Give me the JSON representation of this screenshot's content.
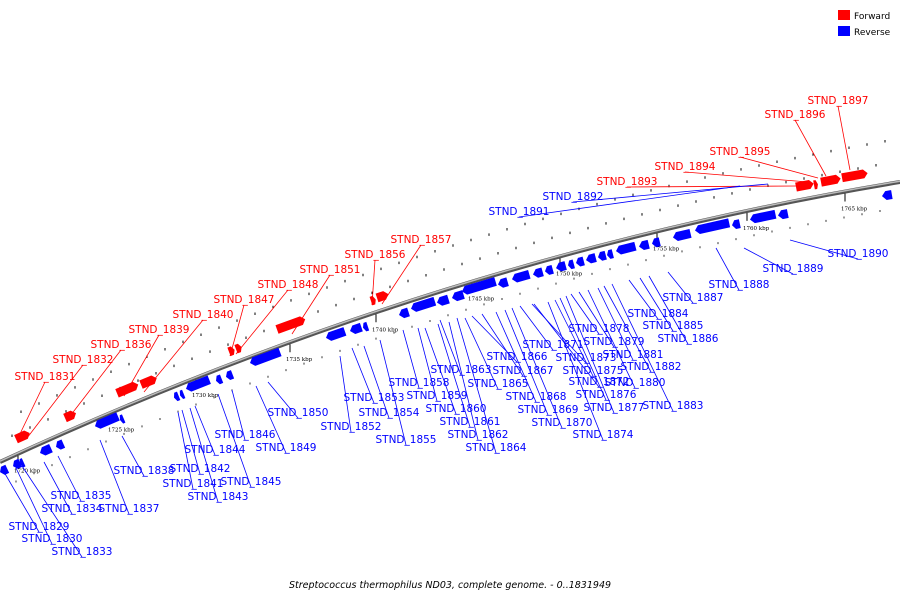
{
  "colors": {
    "forward": "#ff0000",
    "reverse": "#0000ff",
    "backbone": "#808080"
  },
  "legend": {
    "forward_label": "Forward",
    "reverse_label": "Reverse"
  },
  "caption": "Streptococcus thermophilus ND03, complete genome. - 0..1831949",
  "scale_labels": [
    "1720 kbp",
    "1725 kbp",
    "1730 kbp",
    "1735 kbp",
    "1740 kbp",
    "1745 kbp",
    "1750 kbp",
    "1755 kbp",
    "1760 kbp",
    "1765 kbp"
  ],
  "forward_genes": [
    "STND_1831",
    "STND_1832",
    "STND_1836",
    "STND_1839",
    "STND_1840",
    "STND_1847",
    "STND_1848",
    "STND_1851",
    "STND_1856",
    "STND_1857",
    "STND_1893",
    "STND_1894",
    "STND_1895",
    "STND_1896",
    "STND_1897"
  ],
  "reverse_genes": [
    "STND_1829",
    "STND_1830",
    "STND_1833",
    "STND_1834",
    "STND_1835",
    "STND_1837",
    "STND_1838",
    "STND_1841",
    "STND_1842",
    "STND_1843",
    "STND_1844",
    "STND_1845",
    "STND_1846",
    "STND_1849",
    "STND_1850",
    "STND_1852",
    "STND_1853",
    "STND_1854",
    "STND_1855",
    "STND_1858",
    "STND_1859",
    "STND_1860",
    "STND_1861",
    "STND_1862",
    "STND_1863",
    "STND_1864",
    "STND_1865",
    "STND_1866",
    "STND_1867",
    "STND_1868",
    "STND_1869",
    "STND_1870",
    "STND_1871",
    "STND_1872",
    "STND_1873",
    "STND_1874",
    "STND_1875",
    "STND_1876",
    "STND_1877",
    "STND_1878",
    "STND_1879",
    "STND_1880",
    "STND_1881",
    "STND_1882",
    "STND_1883",
    "STND_1884",
    "STND_1885",
    "STND_1886",
    "STND_1887",
    "STND_1888",
    "STND_1889",
    "STND_1890",
    "STND_1891",
    "STND_1892"
  ]
}
